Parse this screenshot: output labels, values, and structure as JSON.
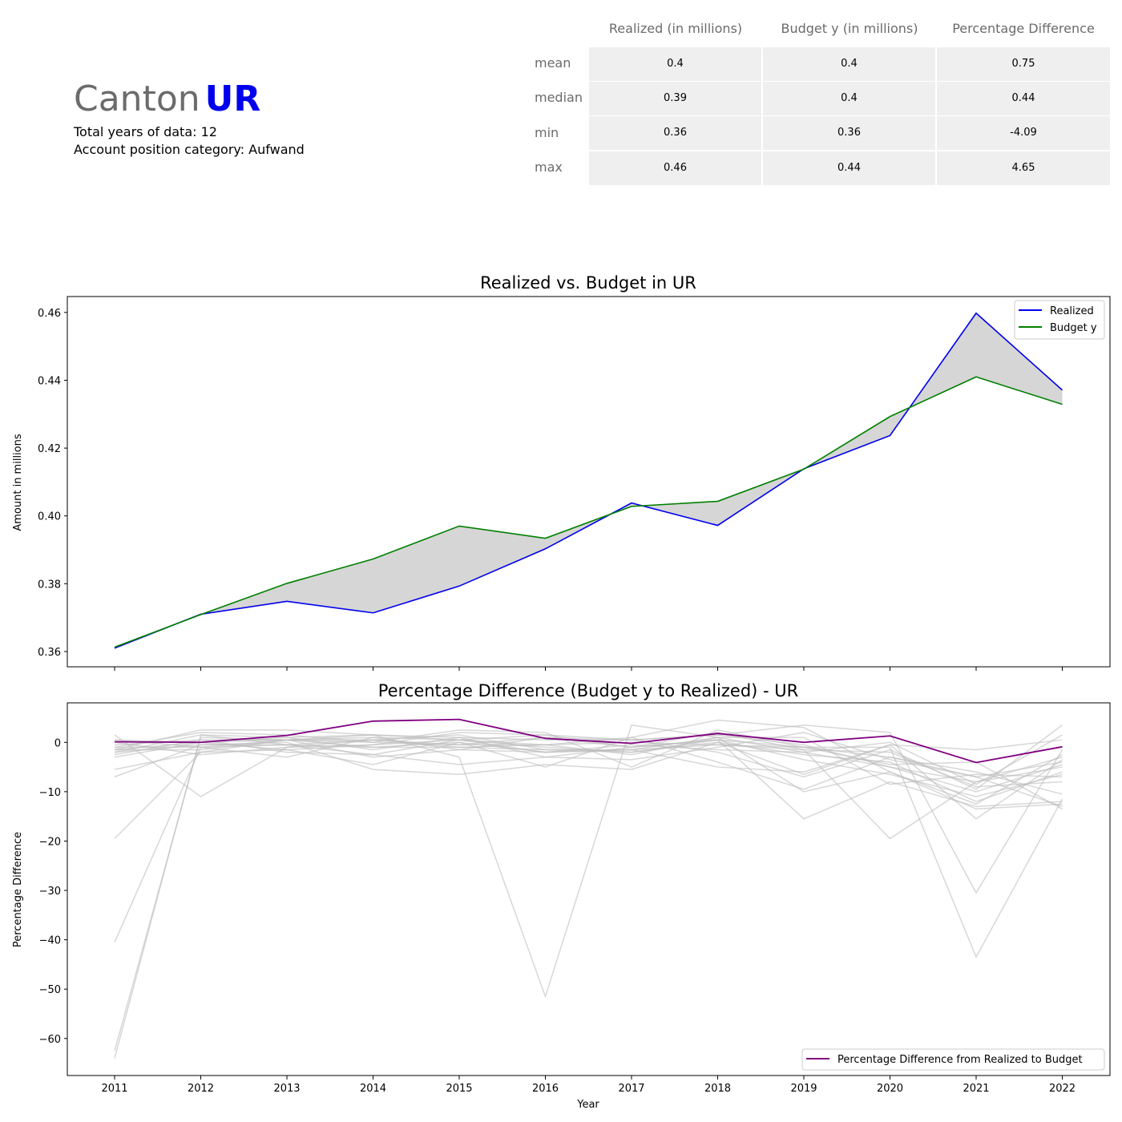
{
  "header": {
    "canton_word": "Canton",
    "canton_code": "UR",
    "canton_code_color": "#0000ee",
    "years_line": "Total years of data: 12",
    "category_line": "Account position category: Aufwand"
  },
  "stats_table": {
    "columns": [
      "Realized (in millions)",
      "Budget y (in millions)",
      "Percentage Difference"
    ],
    "rows": [
      {
        "label": "mean",
        "values": [
          "0.4",
          "0.4",
          "0.75"
        ]
      },
      {
        "label": "median",
        "values": [
          "0.39",
          "0.4",
          "0.44"
        ]
      },
      {
        "label": "min",
        "values": [
          "0.36",
          "0.36",
          "-4.09"
        ]
      },
      {
        "label": "max",
        "values": [
          "0.46",
          "0.44",
          "4.65"
        ]
      }
    ]
  },
  "chart_data": [
    {
      "type": "line",
      "title": "Realized vs. Budget in UR",
      "xlabel": "",
      "ylabel": "Amount in millions",
      "x": [
        2011,
        2012,
        2013,
        2014,
        2015,
        2016,
        2017,
        2018,
        2019,
        2020,
        2021,
        2022
      ],
      "ylim": [
        0.3555,
        0.4647
      ],
      "yticks": [
        0.36,
        0.38,
        0.4,
        0.42,
        0.44,
        0.46
      ],
      "ytick_labels": [
        "0.36",
        "0.38",
        "0.40",
        "0.42",
        "0.44",
        "0.46"
      ],
      "fill_between_color": "#d6d6d6",
      "legend": "top-right",
      "series": [
        {
          "name": "Realized",
          "color": "#0000ee",
          "values": [
            0.361,
            0.371,
            0.3748,
            0.3714,
            0.3793,
            0.3903,
            0.4038,
            0.3972,
            0.4139,
            0.4237,
            0.4598,
            0.4371
          ]
        },
        {
          "name": "Budget y",
          "color": "#008000",
          "values": [
            0.3613,
            0.3709,
            0.3801,
            0.3873,
            0.397,
            0.3934,
            0.4028,
            0.4043,
            0.4138,
            0.4293,
            0.441,
            0.4329
          ]
        }
      ]
    },
    {
      "type": "line",
      "title": "Percentage Difference (Budget y to Realized) - UR",
      "xlabel": "Year",
      "ylabel": "Percentage Difference",
      "x": [
        2011,
        2012,
        2013,
        2014,
        2015,
        2016,
        2017,
        2018,
        2019,
        2020,
        2021,
        2022
      ],
      "xtick_labels": [
        "2011",
        "2012",
        "2013",
        "2014",
        "2015",
        "2016",
        "2017",
        "2018",
        "2019",
        "2020",
        "2021",
        "2022"
      ],
      "ylim": [
        -67.5,
        8
      ],
      "yticks": [
        -60,
        -50,
        -40,
        -30,
        -20,
        -10,
        0
      ],
      "ytick_labels": [
        "−60",
        "−50",
        "−40",
        "−30",
        "−20",
        "−10",
        "0"
      ],
      "legend": "bottom-right",
      "background_color": "#bdbdbd",
      "series": [
        {
          "name": "Percentage Difference from Realized to Budget",
          "color": "#800080",
          "values": [
            0.1,
            0.0,
            1.4,
            4.3,
            4.65,
            0.8,
            -0.2,
            1.8,
            0.0,
            1.3,
            -4.09,
            -0.9
          ]
        }
      ],
      "background_series": [
        {
          "values": [
            -64.0,
            1.5,
            -0.5,
            0.5,
            -1.0,
            -1.5,
            -2.0,
            0.5,
            -1.0,
            -3.0,
            -7.0,
            -4.0
          ]
        },
        {
          "values": [
            -62.5,
            1.0,
            0.5,
            1.0,
            0.5,
            -2.0,
            -1.5,
            1.0,
            -2.0,
            -5.0,
            -8.0,
            -3.0
          ]
        },
        {
          "values": [
            -40.5,
            -1.0,
            -0.5,
            -2.5,
            0.5,
            -1.0,
            -2.0,
            0.0,
            -2.5,
            -4.0,
            -12.0,
            -6.0
          ]
        },
        {
          "values": [
            -19.5,
            -2.0,
            0.5,
            1.5,
            1.0,
            -3.0,
            -1.0,
            2.0,
            -1.5,
            -2.0,
            -9.0,
            -8.0
          ]
        },
        {
          "values": [
            1.5,
            -11.0,
            -1.0,
            -0.5,
            2.0,
            1.5,
            -1.0,
            0.5,
            -15.5,
            -8.0,
            -13.0,
            -12.0
          ]
        },
        {
          "values": [
            -1.5,
            2.5,
            2.5,
            1.5,
            -3.0,
            -51.5,
            3.5,
            1.0,
            -10.0,
            -6.0,
            -12.5,
            -2.5
          ]
        },
        {
          "values": [
            0.5,
            -1.0,
            -3.0,
            1.0,
            -1.5,
            -2.0,
            -1.5,
            -0.5,
            -1.5,
            -19.5,
            -8.0,
            -5.0
          ]
        },
        {
          "values": [
            -2.0,
            1.5,
            1.0,
            -1.5,
            1.0,
            0.5,
            0.5,
            1.5,
            3.5,
            2.0,
            -30.5,
            -1.5
          ]
        },
        {
          "values": [
            -1.0,
            2.0,
            1.5,
            0.0,
            2.5,
            2.0,
            -5.0,
            2.5,
            -1.0,
            -1.0,
            -43.5,
            -11.5
          ]
        },
        {
          "values": [
            -7.0,
            -0.5,
            0.0,
            -5.5,
            -6.5,
            -4.5,
            -5.5,
            0.0,
            -6.5,
            -0.5,
            -15.5,
            -3.5
          ]
        },
        {
          "values": [
            -2.5,
            0.5,
            -2.0,
            -2.5,
            -4.5,
            -3.0,
            -3.5,
            -1.0,
            2.0,
            -3.5,
            -7.0,
            -13.0
          ]
        },
        {
          "values": [
            -5.5,
            -2.0,
            -1.5,
            -4.5,
            0.0,
            -5.0,
            1.0,
            4.5,
            3.0,
            -6.0,
            -13.5,
            -12.5
          ]
        },
        {
          "values": [
            -0.5,
            0.5,
            0.5,
            -3.0,
            -1.5,
            1.0,
            0.5,
            -2.0,
            -7.0,
            -1.5,
            -9.5,
            3.5
          ]
        },
        {
          "values": [
            -1.5,
            -1.5,
            0.5,
            0.5,
            -0.5,
            -0.5,
            1.0,
            -4.0,
            -9.5,
            -3.0,
            -6.0,
            -10.5
          ]
        },
        {
          "values": [
            0.0,
            -2.5,
            -1.0,
            0.5,
            1.5,
            -1.5,
            -1.5,
            -5.0,
            -6.0,
            -0.5,
            -1.5,
            0.5
          ]
        },
        {
          "values": [
            -3.0,
            0.0,
            0.5,
            -1.0,
            0.0,
            -2.0,
            -0.5,
            -1.5,
            -2.0,
            0.0,
            -8.5,
            1.5
          ]
        },
        {
          "values": [
            -1.0,
            -1.0,
            0.5,
            0.0,
            -0.5,
            1.0,
            -1.0,
            0.5,
            -3.5,
            -6.5,
            -11.0,
            -6.5
          ]
        },
        {
          "values": [
            0.5,
            0.0,
            1.0,
            1.5,
            0.5,
            -0.5,
            -2.5,
            1.0,
            1.0,
            -8.5,
            -6.5,
            -7.0
          ]
        },
        {
          "values": [
            -2.0,
            -0.5,
            -0.5,
            -1.0,
            -1.0,
            -0.5,
            0.0,
            -0.5,
            -1.0,
            -4.5,
            -4.0,
            -13.5
          ]
        },
        {
          "values": [
            -1.5,
            0.0,
            -1.5,
            -0.5,
            0.5,
            1.5,
            0.5,
            1.5,
            -0.5,
            -5.0,
            -10.0,
            -4.5
          ]
        }
      ]
    }
  ]
}
